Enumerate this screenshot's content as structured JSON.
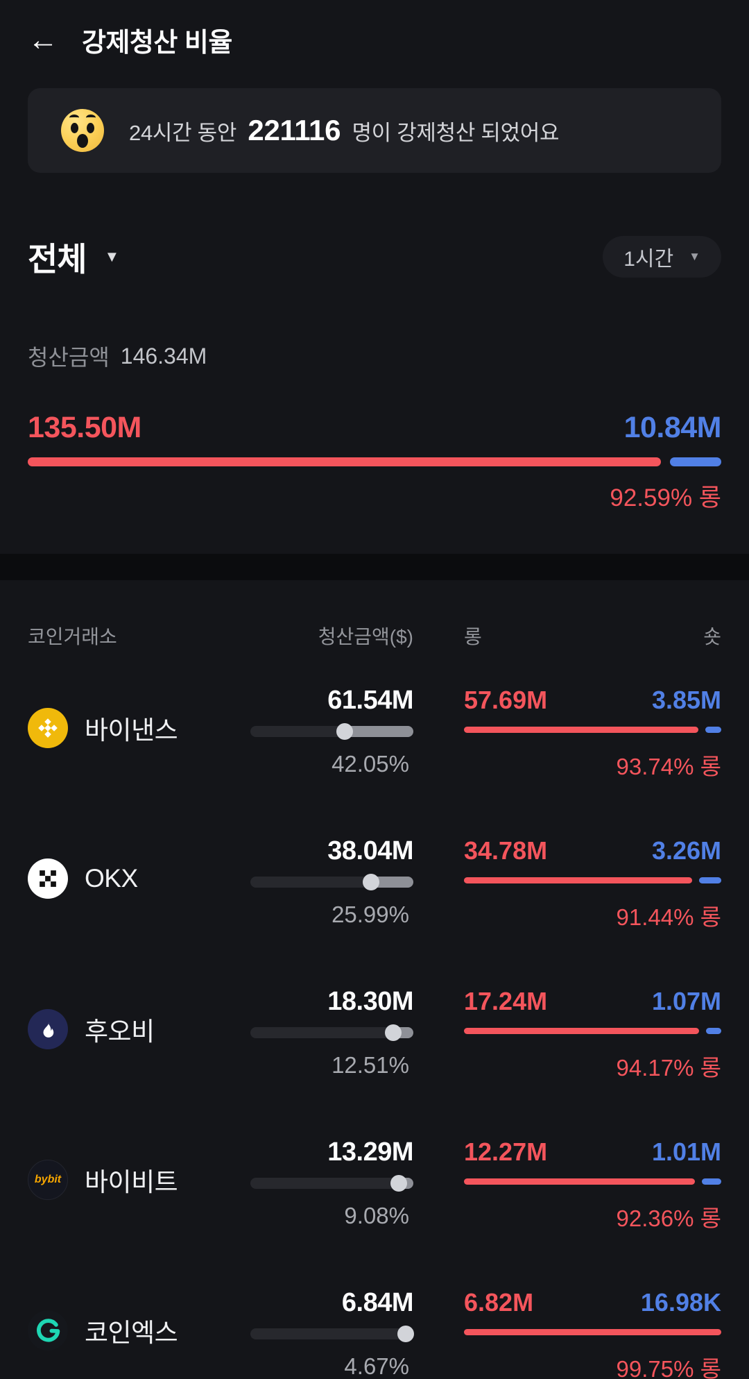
{
  "header": {
    "back": "←",
    "title": "강제청산 비율"
  },
  "banner": {
    "prefix": "24시간 동안",
    "count": "221116",
    "suffix": "명이 강제청산 되었어요"
  },
  "filters": {
    "market_label": "전체",
    "market_caret": "▼",
    "period_label": "1시간",
    "period_caret": "▼"
  },
  "summary": {
    "amount_label": "청산금액",
    "amount_value": "146.34M",
    "long_value": "135.50M",
    "short_value": "10.84M",
    "long_pct": 92.59,
    "long_pct_label": "92.59% 롱"
  },
  "table": {
    "headers": {
      "exchange": "코인거래소",
      "amount": "청산금액($)",
      "long": "롱",
      "short": "숏"
    },
    "rows": [
      {
        "icon": "binance",
        "name": "바이낸스",
        "amount": "61.54M",
        "share_pct": 42.05,
        "share_label": "42.05%",
        "long_value": "57.69M",
        "short_value": "3.85M",
        "long_pct": 93.74,
        "long_pct_label": "93.74% 롱"
      },
      {
        "icon": "okx",
        "name": "OKX",
        "amount": "38.04M",
        "share_pct": 25.99,
        "share_label": "25.99%",
        "long_value": "34.78M",
        "short_value": "3.26M",
        "long_pct": 91.44,
        "long_pct_label": "91.44% 롱"
      },
      {
        "icon": "huobi",
        "name": "후오비",
        "amount": "18.30M",
        "share_pct": 12.51,
        "share_label": "12.51%",
        "long_value": "17.24M",
        "short_value": "1.07M",
        "long_pct": 94.17,
        "long_pct_label": "94.17% 롱"
      },
      {
        "icon": "bybit",
        "name": "바이비트",
        "amount": "13.29M",
        "share_pct": 9.08,
        "share_label": "9.08%",
        "long_value": "12.27M",
        "short_value": "1.01M",
        "long_pct": 92.36,
        "long_pct_label": "92.36% 롱"
      },
      {
        "icon": "coinex",
        "name": "코인엑스",
        "amount": "6.84M",
        "share_pct": 4.67,
        "share_label": "4.67%",
        "long_value": "6.82M",
        "short_value": "16.98K",
        "long_pct": 99.75,
        "long_pct_label": "99.75% 롱"
      }
    ]
  },
  "icons": {
    "bybit_text": "bybit"
  },
  "colors": {
    "long_red": "#F4555C",
    "short_blue": "#5180E6",
    "binance_gold": "#F0B90B",
    "bybit_yellow": "#F7A600",
    "coinex_teal": "#1ED6B3"
  }
}
